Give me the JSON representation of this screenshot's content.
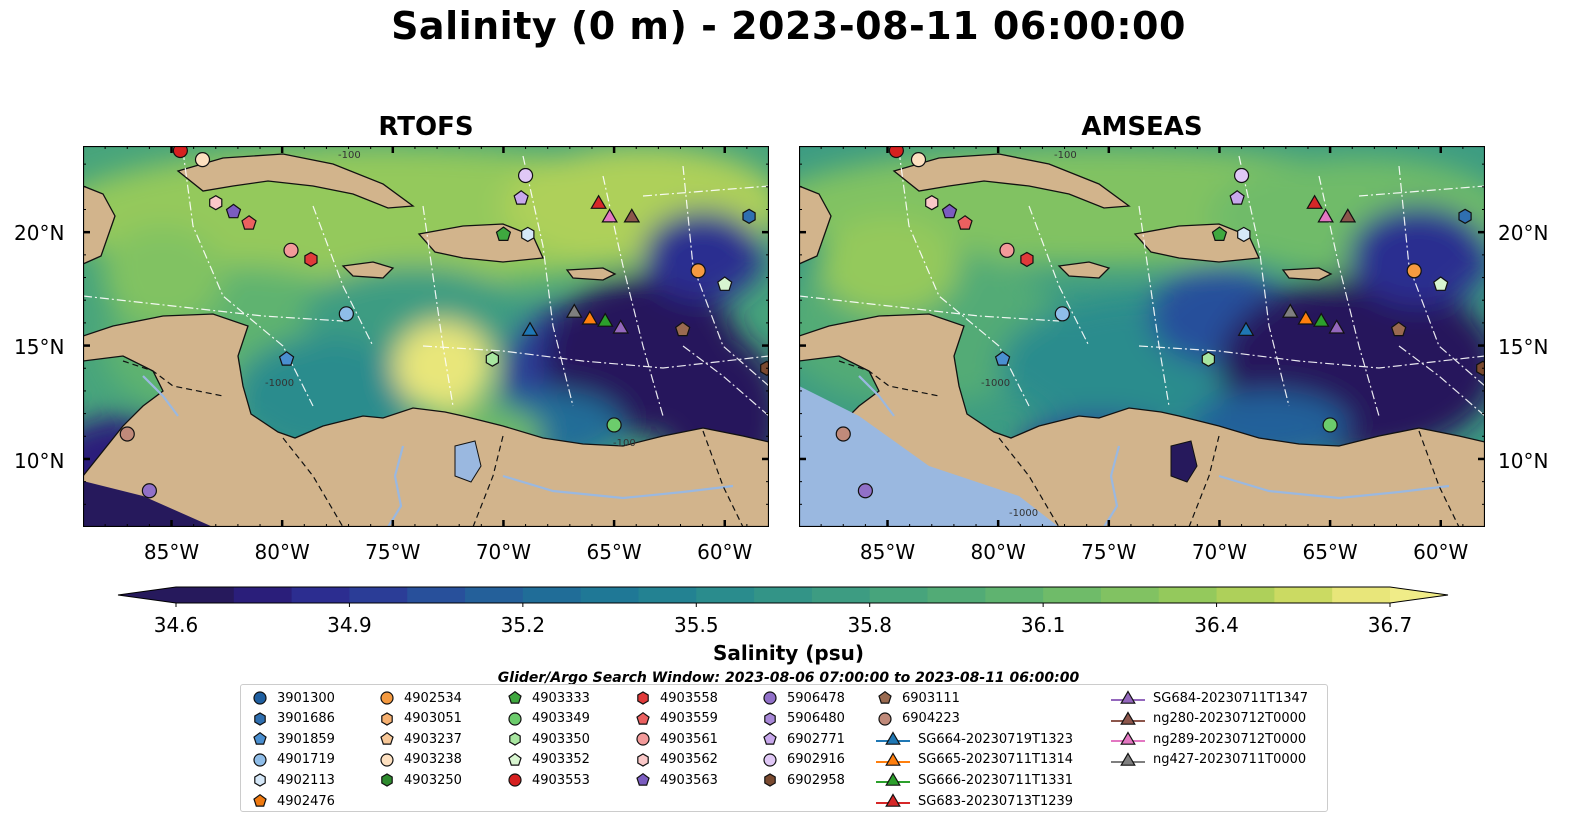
{
  "title": "Salinity (0 m) - 2023-08-11 06:00:00",
  "panels": [
    {
      "title": "RTOFS"
    },
    {
      "title": "AMSEAS"
    }
  ],
  "lat_labels": [
    "20°N",
    "15°N",
    "10°N"
  ],
  "lon_labels": [
    "85°W",
    "80°W",
    "75°W",
    "70°W",
    "65°W",
    "60°W"
  ],
  "contour_labels": [
    "-100",
    "-1000"
  ],
  "colorbar": {
    "label": "Salinity (psu)",
    "min": 34.6,
    "max": 36.7,
    "ticks": [
      "34.6",
      "34.9",
      "35.2",
      "35.5",
      "35.8",
      "36.1",
      "36.4",
      "36.7"
    ],
    "colors": [
      "#26195c",
      "#2a1e7a",
      "#2c2d90",
      "#2b3d97",
      "#28509b",
      "#24609a",
      "#206d98",
      "#1f7896",
      "#238292",
      "#2a8c8d",
      "#339487",
      "#3d9c82",
      "#47a47c",
      "#52ab76",
      "#5fb370",
      "#6fbb69",
      "#81c262",
      "#94c95c",
      "#aed05a",
      "#cbda62",
      "#e8e67a"
    ]
  },
  "search_window": "Glider/Argo Search Window: 2023-08-06 07:00:00 to 2023-08-11 06:00:00",
  "legend": [
    {
      "label": "3901300",
      "marker": "circle",
      "color": "#1f5fa0"
    },
    {
      "label": "3901686",
      "marker": "hexagon",
      "color": "#2f6fb0"
    },
    {
      "label": "3901859",
      "marker": "pentagon",
      "color": "#4a8fd0"
    },
    {
      "label": "4901719",
      "marker": "circle",
      "color": "#8fbde8"
    },
    {
      "label": "4902113",
      "marker": "hexagon",
      "color": "#d6e8f8"
    },
    {
      "label": "4902476",
      "marker": "pentagon",
      "color": "#f07a10"
    },
    {
      "label": "4902534",
      "marker": "circle",
      "color": "#f59a40"
    },
    {
      "label": "4903051",
      "marker": "hexagon",
      "color": "#f6b070"
    },
    {
      "label": "4903237",
      "marker": "pentagon",
      "color": "#f8c898"
    },
    {
      "label": "4903238",
      "marker": "circle",
      "color": "#fde0c0"
    },
    {
      "label": "4903250",
      "marker": "hexagon",
      "color": "#2e8b2e"
    },
    {
      "label": "4903333",
      "marker": "pentagon",
      "color": "#3fa83f"
    },
    {
      "label": "4903349",
      "marker": "circle",
      "color": "#6ccc6c"
    },
    {
      "label": "4903350",
      "marker": "hexagon",
      "color": "#a8e6a0"
    },
    {
      "label": "4903352",
      "marker": "pentagon",
      "color": "#d8f5d0"
    },
    {
      "label": "4903553",
      "marker": "circle",
      "color": "#d62020"
    },
    {
      "label": "4903558",
      "marker": "hexagon",
      "color": "#e03a3a"
    },
    {
      "label": "4903559",
      "marker": "pentagon",
      "color": "#ea6060"
    },
    {
      "label": "4903561",
      "marker": "circle",
      "color": "#f29a9a"
    },
    {
      "label": "4903562",
      "marker": "hexagon",
      "color": "#fac8c8"
    },
    {
      "label": "4903563",
      "marker": "pentagon",
      "color": "#7b5cc0"
    },
    {
      "label": "5906478",
      "marker": "circle",
      "color": "#9170c8"
    },
    {
      "label": "5906480",
      "marker": "hexagon",
      "color": "#a888d8"
    },
    {
      "label": "6902771",
      "marker": "pentagon",
      "color": "#c8a8ec"
    },
    {
      "label": "6902916",
      "marker": "circle",
      "color": "#e0c8f6"
    },
    {
      "label": "6902958",
      "marker": "hexagon",
      "color": "#7a4a30"
    },
    {
      "label": "6903111",
      "marker": "pentagon",
      "color": "#9a6a50"
    },
    {
      "label": "6904223",
      "marker": "circle",
      "color": "#c08a7a"
    },
    {
      "label": "SG664-20230719T1323",
      "marker": "triangle-line",
      "color": "#1f77b4"
    },
    {
      "label": "SG665-20230711T1314",
      "marker": "triangle-line",
      "color": "#ff7f0e"
    },
    {
      "label": "SG666-20230711T1331",
      "marker": "triangle-line",
      "color": "#2ca02c"
    },
    {
      "label": "SG683-20230713T1239",
      "marker": "triangle-line",
      "color": "#d62728"
    },
    {
      "label": "SG684-20230711T1347",
      "marker": "triangle-line",
      "color": "#9467bd"
    },
    {
      "label": "ng280-20230712T0000",
      "marker": "triangle-line",
      "color": "#8c564b"
    },
    {
      "label": "ng289-20230712T0000",
      "marker": "triangle-line",
      "color": "#e377c2"
    },
    {
      "label": "ng427-20230711T0000",
      "marker": "triangle-line",
      "color": "#7f7f7f"
    }
  ],
  "extent": {
    "lon_min": -89.0,
    "lon_max": -58.0,
    "lat_min": 7.0,
    "lat_max": 23.8
  },
  "observations": [
    {
      "id": "4903553",
      "lon": -84.6,
      "lat": 23.6
    },
    {
      "id": "4903238",
      "lon": -83.6,
      "lat": 23.2
    },
    {
      "id": "4903562",
      "lon": -83.0,
      "lat": 21.3
    },
    {
      "id": "4903563",
      "lon": -82.2,
      "lat": 20.9
    },
    {
      "id": "4903559",
      "lon": -81.5,
      "lat": 20.4
    },
    {
      "id": "4903561",
      "lon": -79.6,
      "lat": 19.2
    },
    {
      "id": "4903558",
      "lon": -78.7,
      "lat": 18.8
    },
    {
      "id": "4901719",
      "lon": -77.1,
      "lat": 16.4
    },
    {
      "id": "3901859",
      "lon": -79.8,
      "lat": 14.4
    },
    {
      "id": "6902916",
      "lon": -69.0,
      "lat": 22.5
    },
    {
      "id": "6902771",
      "lon": -69.2,
      "lat": 21.5
    },
    {
      "id": "4903333",
      "lon": -70.0,
      "lat": 19.9
    },
    {
      "id": "4902113",
      "lon": -68.9,
      "lat": 19.9
    },
    {
      "id": "4903352",
      "lon": -60.0,
      "lat": 17.7
    },
    {
      "id": "4902534",
      "lon": -61.2,
      "lat": 18.3
    },
    {
      "id": "3901686",
      "lon": -58.9,
      "lat": 20.7
    },
    {
      "id": "6903111",
      "lon": -61.9,
      "lat": 15.7
    },
    {
      "id": "6902958",
      "lon": -58.1,
      "lat": 14.0
    },
    {
      "id": "4903350",
      "lon": -70.5,
      "lat": 14.4
    },
    {
      "id": "4903349",
      "lon": -65.0,
      "lat": 11.5
    },
    {
      "id": "6904223",
      "lon": -87.0,
      "lat": 11.1
    },
    {
      "id": "5906478",
      "lon": -86.0,
      "lat": 8.6
    },
    {
      "id": "SG664-20230719T1323",
      "lon": -68.8,
      "lat": 15.7
    },
    {
      "id": "ng427-20230711T0000",
      "lon": -66.8,
      "lat": 16.5
    },
    {
      "id": "SG665-20230711T1314",
      "lon": -66.1,
      "lat": 16.2
    },
    {
      "id": "SG666-20230711T1331",
      "lon": -65.4,
      "lat": 16.1
    },
    {
      "id": "SG684-20230711T1347",
      "lon": -64.7,
      "lat": 15.8
    },
    {
      "id": "SG683-20230713T1239",
      "lon": -65.7,
      "lat": 21.3
    },
    {
      "id": "ng289-20230712T0000",
      "lon": -65.2,
      "lat": 20.7
    },
    {
      "id": "ng280-20230712T0000",
      "lon": -64.2,
      "lat": 20.7
    }
  ]
}
